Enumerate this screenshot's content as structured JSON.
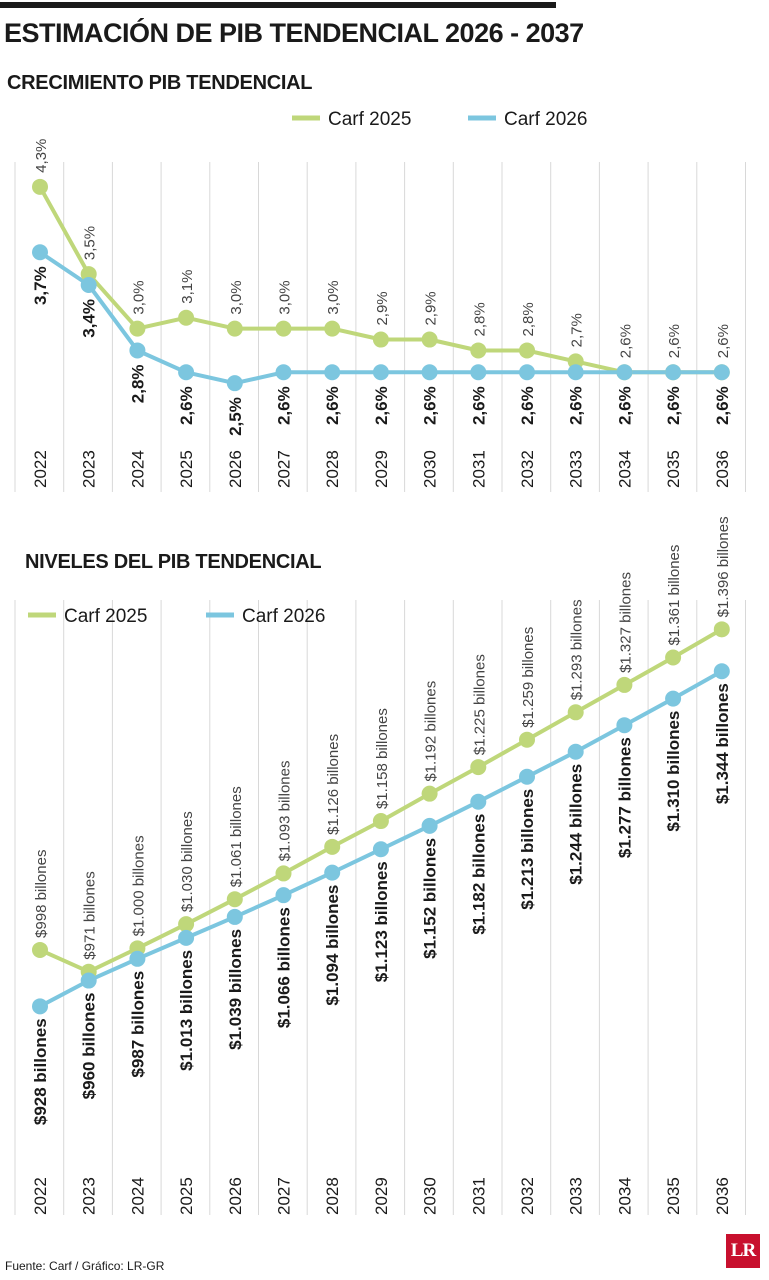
{
  "title": "ESTIMACIÓN DE PIB TENDENCIAL 2026 - 2037",
  "source": "Fuente: Carf / Gráfico: LR-GR",
  "logo": "LR",
  "colors": {
    "carf2025": "#bfd77a",
    "carf2026": "#7cc6df",
    "grid": "#d8d8d8",
    "text": "#1a1a1a"
  },
  "chart_data": [
    {
      "type": "line",
      "title": "CRECIMIENTO PIB TENDENCIAL",
      "legend_position": "top-right",
      "categories": [
        "2022",
        "2023",
        "2024",
        "2025",
        "2026",
        "2027",
        "2028",
        "2029",
        "2030",
        "2031",
        "2032",
        "2033",
        "2034",
        "2035",
        "2036"
      ],
      "ylim": [
        2.3,
        4.5
      ],
      "series": [
        {
          "name": "Carf 2025",
          "color": "#bfd77a",
          "values": [
            4.3,
            3.5,
            3.0,
            3.1,
            3.0,
            3.0,
            3.0,
            2.9,
            2.9,
            2.8,
            2.8,
            2.7,
            2.6,
            2.6,
            2.6
          ],
          "labels": [
            "4,3%",
            "3,5%",
            "3,0%",
            "3,1%",
            "3,0%",
            "3,0%",
            "3,0%",
            "2,9%",
            "2,9%",
            "2,8%",
            "2,8%",
            "2,7%",
            "2,6%",
            "2,6%",
            "2,6%"
          ]
        },
        {
          "name": "Carf 2026",
          "color": "#7cc6df",
          "values": [
            3.7,
            3.4,
            2.8,
            2.6,
            2.5,
            2.6,
            2.6,
            2.6,
            2.6,
            2.6,
            2.6,
            2.6,
            2.6,
            2.6,
            2.6
          ],
          "labels": [
            "3,7%",
            "3,4%",
            "2,8%",
            "2,6%",
            "2,5%",
            "2,6%",
            "2,6%",
            "2,6%",
            "2,6%",
            "2,6%",
            "2,6%",
            "2,6%",
            "2,6%",
            "2,6%",
            "2,6%"
          ]
        }
      ]
    },
    {
      "type": "line",
      "title": "NIVELES DEL PIB TENDENCIAL",
      "legend_position": "top-left",
      "categories": [
        "2022",
        "2023",
        "2024",
        "2025",
        "2026",
        "2027",
        "2028",
        "2029",
        "2030",
        "2031",
        "2032",
        "2033",
        "2034",
        "2035",
        "2036"
      ],
      "ylim": [
        700,
        1420
      ],
      "series": [
        {
          "name": "Carf 2025",
          "color": "#bfd77a",
          "values": [
            998,
            971,
            1000,
            1030,
            1061,
            1093,
            1126,
            1158,
            1192,
            1225,
            1259,
            1293,
            1327,
            1361,
            1396
          ],
          "labels": [
            "$998 billones",
            "$971 billones",
            "$1.000 billones",
            "$1.030 billones",
            "$1.061 billones",
            "$1.093 billones",
            "$1.126 billones",
            "$1.158 billones",
            "$1.192 billones",
            "$1.225 billones",
            "$1.259 billones",
            "$1.293 billones",
            "$1.327 billones",
            "$1.361 billones",
            "$1.396 billones"
          ]
        },
        {
          "name": "Carf 2026",
          "color": "#7cc6df",
          "values": [
            928,
            960,
            987,
            1013,
            1039,
            1066,
            1094,
            1123,
            1152,
            1182,
            1213,
            1244,
            1277,
            1310,
            1344
          ],
          "labels": [
            "$928 billones",
            "$960 billones",
            "$987 billones",
            "$1.013 billones",
            "$1.039 billones",
            "$1.066 billones",
            "$1.094 billones",
            "$1.123 billones",
            "$1.152 billones",
            "$1.182 billones",
            "$1.213 billones",
            "$1.244 billones",
            "$1.277 billones",
            "$1.310 billones",
            "$1.344 billones"
          ]
        }
      ]
    }
  ]
}
